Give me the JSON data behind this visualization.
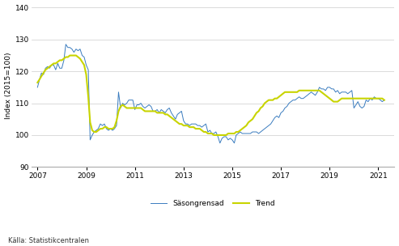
{
  "title": "",
  "ylabel": "Index (2015=100)",
  "xlabel": "",
  "ylim": [
    90,
    141
  ],
  "yticks": [
    90,
    100,
    110,
    120,
    130,
    140
  ],
  "xtick_years": [
    2007,
    2009,
    2011,
    2013,
    2015,
    2017,
    2019,
    2021
  ],
  "source_text": "Källa: Statistikcentralen",
  "legend_labels": [
    "Säsongrensad",
    "Trend"
  ],
  "line_color_seas": "#3a7cbf",
  "line_color_trend": "#c8d400",
  "background_color": "#ffffff",
  "grid_color": "#cccccc",
  "seas_data": [
    115.0,
    117.5,
    119.5,
    119.0,
    121.0,
    121.5,
    121.0,
    122.0,
    122.0,
    120.5,
    122.5,
    121.0,
    121.0,
    123.5,
    128.5,
    127.5,
    127.5,
    127.0,
    126.0,
    127.0,
    126.5,
    127.0,
    125.0,
    124.5,
    122.0,
    120.5,
    98.5,
    100.0,
    101.0,
    101.5,
    102.0,
    103.5,
    103.0,
    103.5,
    102.0,
    101.5,
    102.0,
    101.5,
    102.0,
    103.0,
    113.5,
    108.5,
    110.0,
    109.5,
    110.0,
    111.0,
    111.0,
    111.0,
    108.0,
    109.5,
    109.5,
    110.0,
    109.0,
    108.5,
    109.0,
    109.5,
    109.0,
    107.5,
    107.5,
    108.0,
    107.0,
    108.0,
    107.5,
    107.0,
    108.0,
    108.5,
    107.0,
    106.0,
    105.0,
    106.5,
    107.0,
    107.5,
    104.5,
    103.5,
    103.5,
    103.0,
    103.5,
    103.5,
    103.5,
    103.0,
    103.0,
    102.5,
    103.0,
    103.5,
    101.0,
    101.5,
    100.5,
    100.5,
    101.0,
    99.5,
    97.5,
    99.0,
    99.5,
    99.5,
    98.5,
    99.0,
    98.5,
    97.5,
    100.0,
    100.5,
    101.0,
    100.5,
    100.5,
    100.5,
    100.5,
    100.5,
    101.0,
    101.0,
    101.0,
    100.5,
    101.0,
    101.5,
    102.0,
    102.5,
    103.0,
    103.5,
    104.5,
    105.5,
    106.0,
    105.5,
    107.0,
    107.5,
    108.5,
    109.0,
    110.0,
    110.5,
    111.0,
    111.0,
    111.5,
    112.0,
    111.5,
    111.5,
    112.0,
    112.5,
    113.0,
    113.5,
    113.0,
    112.5,
    113.5,
    115.0,
    114.5,
    114.5,
    114.0,
    115.0,
    115.0,
    114.5,
    114.5,
    113.5,
    114.0,
    113.0,
    113.5,
    113.5,
    113.5,
    113.0,
    113.5,
    114.0,
    108.5,
    109.5,
    110.5,
    109.0,
    108.5,
    109.0,
    111.0,
    110.5,
    111.5,
    111.0,
    112.0,
    111.5,
    111.5,
    111.0,
    110.5,
    111.0
  ],
  "trend_data": [
    116.5,
    117.5,
    118.5,
    119.5,
    120.5,
    121.0,
    121.5,
    122.0,
    122.5,
    122.5,
    123.0,
    123.5,
    123.5,
    124.0,
    124.5,
    124.5,
    125.0,
    125.0,
    125.0,
    125.0,
    124.5,
    124.0,
    123.0,
    122.0,
    119.0,
    112.0,
    104.0,
    101.5,
    101.0,
    101.0,
    101.5,
    102.0,
    102.0,
    102.5,
    102.5,
    102.0,
    102.0,
    102.0,
    102.5,
    104.5,
    107.5,
    109.0,
    109.5,
    109.0,
    108.5,
    108.5,
    108.5,
    108.5,
    108.5,
    108.5,
    108.5,
    108.5,
    108.0,
    107.5,
    107.5,
    107.5,
    107.5,
    107.5,
    107.5,
    107.0,
    107.0,
    107.0,
    107.0,
    106.5,
    106.5,
    106.0,
    105.5,
    105.0,
    104.5,
    104.0,
    103.5,
    103.5,
    103.0,
    103.0,
    103.0,
    102.5,
    102.5,
    102.5,
    102.0,
    102.0,
    102.0,
    101.5,
    101.0,
    101.0,
    100.5,
    100.5,
    100.5,
    100.0,
    100.0,
    100.0,
    100.0,
    100.0,
    100.0,
    100.0,
    100.5,
    100.5,
    100.5,
    100.5,
    101.0,
    101.0,
    101.5,
    102.0,
    102.5,
    103.0,
    104.0,
    104.5,
    105.0,
    106.0,
    107.0,
    107.5,
    108.5,
    109.0,
    110.0,
    110.5,
    111.0,
    111.0,
    111.0,
    111.5,
    111.5,
    112.0,
    112.5,
    113.0,
    113.5,
    113.5,
    113.5,
    113.5,
    113.5,
    113.5,
    113.5,
    114.0,
    114.0,
    114.0,
    114.0,
    114.0,
    114.0,
    114.0,
    114.0,
    114.0,
    114.0,
    114.0,
    113.5,
    113.0,
    112.5,
    112.0,
    111.5,
    111.0,
    110.5,
    110.5,
    110.5,
    111.0,
    111.5,
    111.5,
    111.5,
    111.5,
    111.5,
    111.5,
    111.5,
    111.5,
    111.5,
    111.5,
    111.5,
    111.5,
    111.5,
    111.5,
    111.5,
    111.5,
    111.5,
    111.5,
    111.5,
    111.5,
    111.5,
    111.0
  ],
  "start_year": 2007,
  "start_month": 1
}
